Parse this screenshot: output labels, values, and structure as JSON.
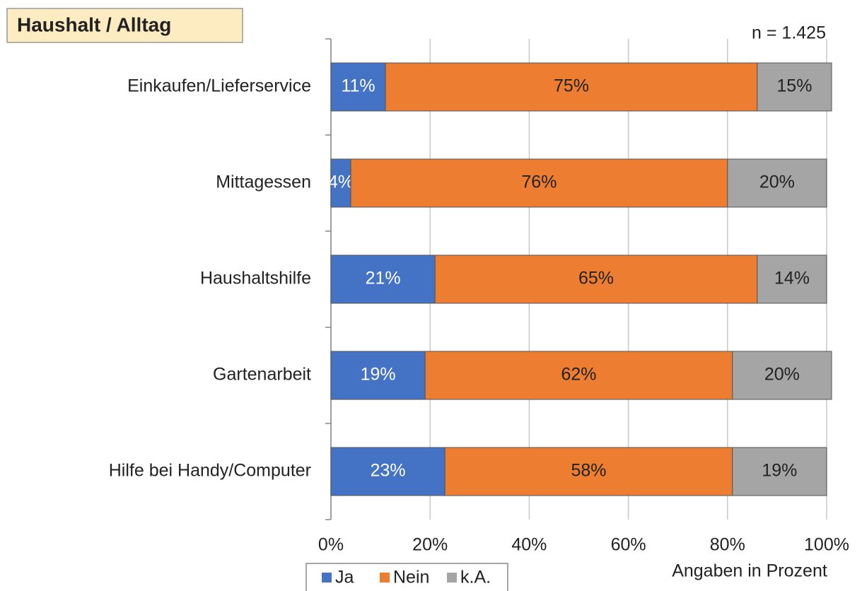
{
  "chart_data": {
    "type": "bar",
    "orientation": "horizontal",
    "stacked": true,
    "title": "Haushalt / Alltag",
    "annotation": "n = 1.425",
    "x_label": "Angaben in Prozent",
    "categories": [
      "Einkaufen/Lieferservice",
      "Mittagessen",
      "Haushaltshilfe",
      "Gartenarbeit",
      "Hilfe bei Handy/Computer"
    ],
    "series": [
      {
        "name": "Ja",
        "color": "#4472c4",
        "label_color": "#ffffff",
        "values": [
          11,
          4,
          21,
          19,
          23
        ],
        "value_labels": [
          "11%",
          "4%",
          "21%",
          "19%",
          "23%"
        ]
      },
      {
        "name": "Nein",
        "color": "#ed7d31",
        "label_color": "#222222",
        "values": [
          75,
          76,
          65,
          62,
          58
        ],
        "value_labels": [
          "75%",
          "76%",
          "65%",
          "62%",
          "58%"
        ]
      },
      {
        "name": "k.A.",
        "color": "#a5a5a5",
        "label_color": "#222222",
        "values": [
          15,
          20,
          14,
          20,
          19
        ],
        "value_labels": [
          "15%",
          "20%",
          "14%",
          "20%",
          "19%"
        ]
      }
    ],
    "xlim": [
      0,
      100
    ],
    "xticks": [
      {
        "value": 0,
        "label": "0%"
      },
      {
        "value": 20,
        "label": "20%"
      },
      {
        "value": 40,
        "label": "40%"
      },
      {
        "value": 60,
        "label": "60%"
      },
      {
        "value": 80,
        "label": "80%"
      },
      {
        "value": 100,
        "label": "100%"
      }
    ],
    "grid": true,
    "legend": "bottom"
  }
}
